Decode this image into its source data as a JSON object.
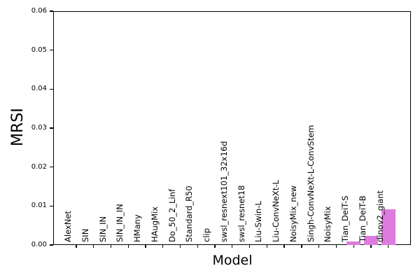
{
  "chart_data": {
    "type": "bar",
    "title": "",
    "xlabel": "Model",
    "ylabel": "MRSI",
    "ylim": [
      0,
      0.06
    ],
    "ytick_step": 0.01,
    "ytick_labels": [
      "0.00",
      "0.01",
      "0.02",
      "0.03",
      "0.04",
      "0.05",
      "0.06"
    ],
    "categories": [
      "AlexNet",
      "SIN",
      "SIN_IN",
      "SIN_IN_IN",
      "HMany",
      "HAugMix",
      "Do_50_2_Linf",
      "Standard_R50",
      "clip",
      "swsl_resnext101_32x16d",
      "swsl_resnet18",
      "Liu-Swin-L",
      "Liu-ConvNeXt-L",
      "NoisyMix_new",
      "Singh-ConvNeXt-L-ConvStem",
      "NoisyMix",
      "Tian_DeiT-S",
      "Tian_DeiT-B",
      "dinov2_giant"
    ],
    "values": [
      0,
      0,
      0,
      0,
      0,
      0,
      0,
      0,
      0,
      0,
      0,
      0,
      0,
      0,
      0,
      0,
      0.0009,
      0.0023,
      0.0091
    ],
    "bar_color": "#DD7CDE",
    "axis_color": "#000000",
    "background": "#FFFFFF",
    "grid": false,
    "legend": null
  }
}
